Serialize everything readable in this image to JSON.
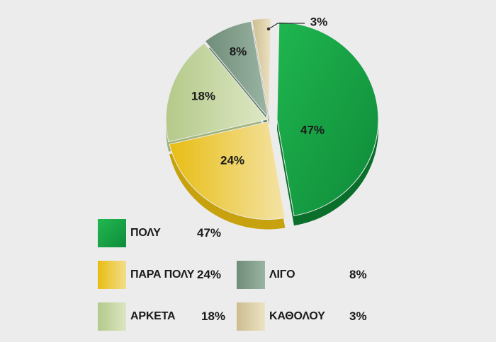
{
  "chart_data": {
    "type": "pie",
    "slices": [
      {
        "label": "ΠΟΛΥ",
        "value": 47,
        "display": "47%",
        "color": "#16a34a"
      },
      {
        "label": "ΠΑΡΑ ΠΟΛΥ",
        "value": 24,
        "display": "24%",
        "color": "#e9c31c"
      },
      {
        "label": "ΑΡΚΕΤΑ",
        "value": 18,
        "display": "18%",
        "color": "#bfd199"
      },
      {
        "label": "ΛΙΓΟ",
        "value": 8,
        "display": "8%",
        "color": "#7f9c88"
      },
      {
        "label": "ΚΑΘΟΛΟΥ",
        "value": 3,
        "display": "3%",
        "color": "#d8cba4"
      }
    ],
    "legend_position": "bottom"
  }
}
